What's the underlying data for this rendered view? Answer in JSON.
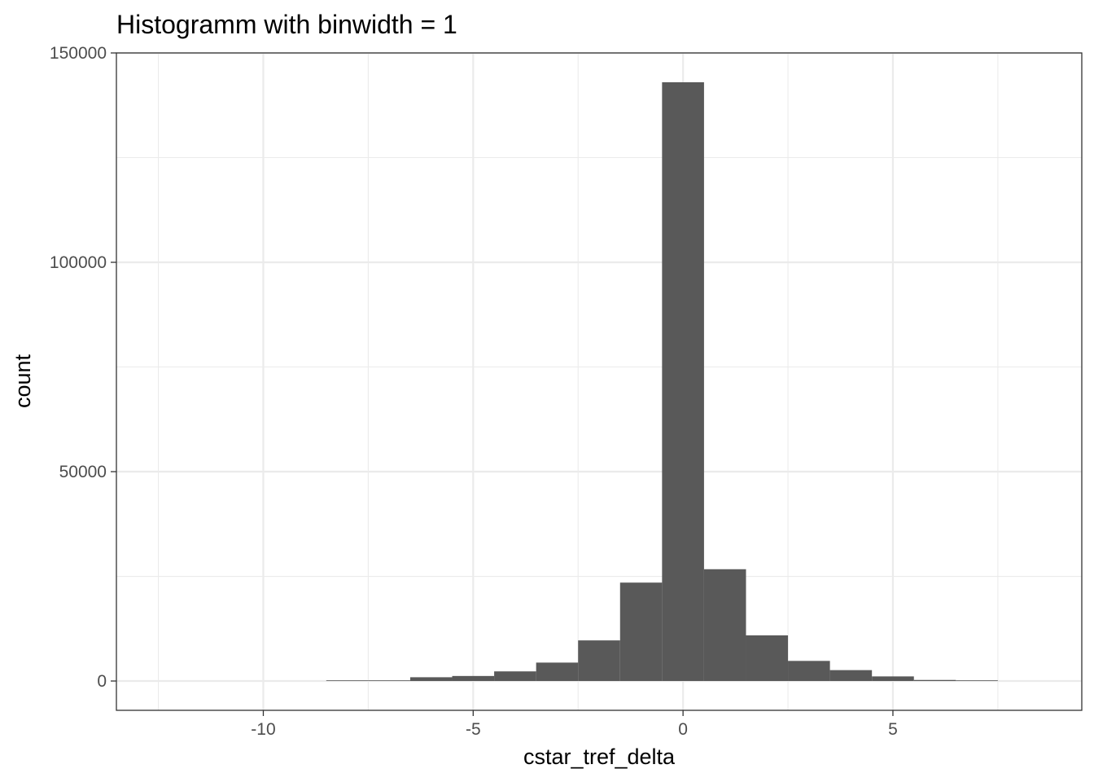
{
  "chart_data": {
    "type": "bar",
    "title": "Histogramm with binwidth = 1",
    "xlabel": "cstar_tref_delta",
    "ylabel": "count",
    "binwidth": 1,
    "xlim": [
      -13.5,
      9.5
    ],
    "ylim": [
      -7000,
      150000
    ],
    "x_ticks": [
      -10,
      -5,
      0,
      5
    ],
    "x_tick_labels": [
      "-10",
      "-5",
      "0",
      "5"
    ],
    "y_ticks": [
      0,
      50000,
      100000,
      150000
    ],
    "y_tick_labels": [
      "0",
      "50000",
      "100000",
      "150000"
    ],
    "x_minor_ticks": [
      -12.5,
      -7.5,
      -2.5,
      2.5,
      7.5
    ],
    "y_minor_ticks": [
      25000,
      75000,
      125000
    ],
    "grid": true,
    "bar_color": "#595959",
    "bins": [
      {
        "x": -8,
        "count": 50
      },
      {
        "x": -7,
        "count": 150
      },
      {
        "x": -6,
        "count": 900
      },
      {
        "x": -5,
        "count": 1200
      },
      {
        "x": -4,
        "count": 2300
      },
      {
        "x": -3,
        "count": 4400
      },
      {
        "x": -2,
        "count": 9700
      },
      {
        "x": -1,
        "count": 23500
      },
      {
        "x": 0,
        "count": 143000
      },
      {
        "x": 1,
        "count": 26700
      },
      {
        "x": 2,
        "count": 10900
      },
      {
        "x": 3,
        "count": 4800
      },
      {
        "x": 4,
        "count": 2600
      },
      {
        "x": 5,
        "count": 1100
      },
      {
        "x": 6,
        "count": 250
      },
      {
        "x": 7,
        "count": 100
      }
    ]
  }
}
